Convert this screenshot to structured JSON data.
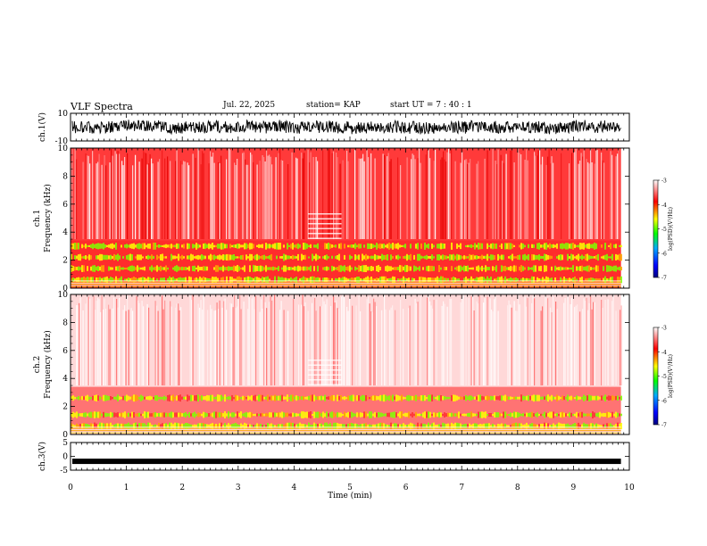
{
  "header": {
    "title": "VLF Spectra",
    "date": "Jul. 22, 2025",
    "station": "station= KAP",
    "start": "start  UT =   7 : 40 : 1"
  },
  "chart_data": [
    {
      "type": "line",
      "panel": "ch1-waveform",
      "ylabel": "ch.1(V)",
      "ylim": [
        -10,
        10
      ],
      "yticks": [
        "10",
        "-10"
      ],
      "x_end_min": 9.85
    },
    {
      "type": "heatmap",
      "panel": "ch1-spectrogram",
      "ylabel": "ch.1 Frequency (kHz)",
      "ylim": [
        0,
        10
      ],
      "yticks": [
        "0",
        "2",
        "4",
        "6",
        "8",
        "10"
      ],
      "bands_khz": [
        0.6,
        1.4,
        2.2,
        3.0
      ],
      "colorbar": {
        "label": "log(PSD)(V²/Hz)",
        "range": [
          -7,
          -3
        ],
        "ticks": [
          "-3",
          "-4",
          "-5",
          "-6",
          "-7"
        ]
      }
    },
    {
      "type": "heatmap",
      "panel": "ch2-spectrogram",
      "ylabel": "ch.2 Frequency (kHz)",
      "ylim": [
        0,
        10
      ],
      "yticks": [
        "0",
        "2",
        "4",
        "6",
        "8",
        "10"
      ],
      "bands_khz": [
        0.6,
        1.4,
        2.6
      ],
      "colorbar": {
        "label": "log(PSD)(V²/Hz)",
        "range": [
          -7,
          -3
        ],
        "ticks": [
          "-3",
          "-4",
          "-5",
          "-6",
          "-7"
        ]
      }
    },
    {
      "type": "line",
      "panel": "ch3-waveform",
      "ylabel": "ch.3(V)",
      "ylim": [
        -5,
        5
      ],
      "yticks": [
        "5",
        "0",
        "-5"
      ],
      "x_end_min": 9.85
    }
  ],
  "xaxis": {
    "label": "Time (min)",
    "range": [
      0,
      10
    ],
    "ticks": [
      "0",
      "1",
      "2",
      "3",
      "4",
      "5",
      "6",
      "7",
      "8",
      "9",
      "10"
    ]
  }
}
